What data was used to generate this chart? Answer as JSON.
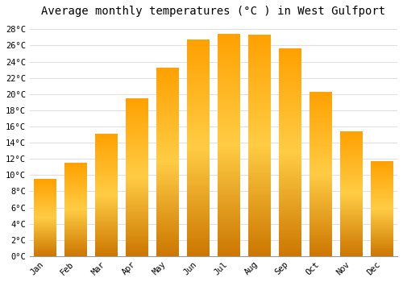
{
  "title": "Average monthly temperatures (°C ) in West Gulfport",
  "months": [
    "Jan",
    "Feb",
    "Mar",
    "Apr",
    "May",
    "Jun",
    "Jul",
    "Aug",
    "Sep",
    "Oct",
    "Nov",
    "Dec"
  ],
  "temperatures": [
    9.5,
    11.5,
    15.1,
    19.5,
    23.3,
    26.7,
    27.4,
    27.3,
    25.6,
    20.3,
    15.4,
    11.7
  ],
  "bar_color_bottom": "#E8900A",
  "bar_color_mid": "#FFB824",
  "bar_color_top": "#FFAA00",
  "yticks": [
    0,
    2,
    4,
    6,
    8,
    10,
    12,
    14,
    16,
    18,
    20,
    22,
    24,
    26,
    28
  ],
  "ylim": [
    0,
    29
  ],
  "background_color": "#FFFFFF",
  "grid_color": "#E0E0E0",
  "title_fontsize": 10,
  "tick_fontsize": 7.5,
  "font_family": "monospace",
  "bar_width": 0.75
}
